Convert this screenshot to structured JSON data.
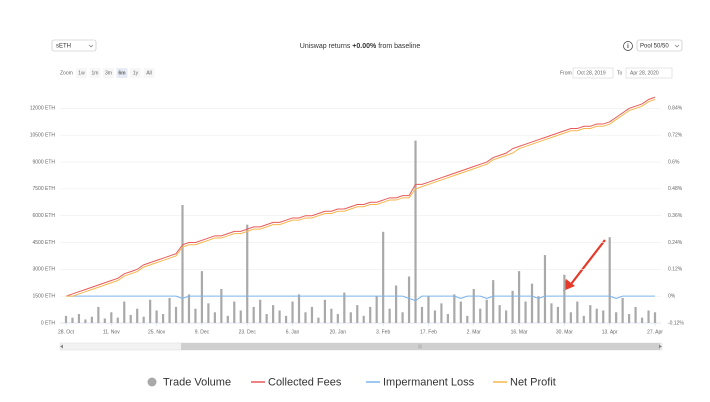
{
  "controls": {
    "asset": "sETH",
    "title_prefix": "Uniswap returns",
    "title_value": "+0.00%",
    "title_suffix": "from baseline",
    "info": "i",
    "pool": "Pool 50/50",
    "zoom_label": "Zoom",
    "zoom_options": [
      "1w",
      "1m",
      "3m",
      "6m",
      "1y",
      "All"
    ],
    "from_label": "From",
    "from_date": "Oct 28, 2019",
    "to_label": "To",
    "to_date": "Apr 28, 2020"
  },
  "chart_data": {
    "type": "combo",
    "categories": [
      "28. Oct",
      null,
      null,
      null,
      null,
      null,
      null,
      "11. Nov",
      null,
      null,
      null,
      null,
      null,
      null,
      "25. Nov",
      null,
      null,
      null,
      null,
      null,
      null,
      "9. Dec",
      null,
      null,
      null,
      null,
      null,
      null,
      "23. Dec",
      null,
      null,
      null,
      null,
      null,
      null,
      "6. Jan",
      null,
      null,
      null,
      null,
      null,
      null,
      "20. Jan",
      null,
      null,
      null,
      null,
      null,
      null,
      "3. Feb",
      null,
      null,
      null,
      null,
      null,
      null,
      "17. Feb",
      null,
      null,
      null,
      null,
      null,
      null,
      "2. Mar",
      null,
      null,
      null,
      null,
      null,
      null,
      "16. Mar",
      null,
      null,
      null,
      null,
      null,
      null,
      "30. Mar",
      null,
      null,
      null,
      null,
      null,
      null,
      "13. Apr",
      null,
      null,
      null,
      null,
      null,
      null,
      "27. Apr"
    ],
    "series": [
      {
        "name": "Trade Volume",
        "type": "bar",
        "color": "#a9a9a9",
        "values": [
          400,
          300,
          500,
          200,
          350,
          900,
          250,
          600,
          300,
          1200,
          450,
          800,
          350,
          1300,
          700,
          500,
          1400,
          900,
          6600,
          1600,
          800,
          2900,
          1100,
          600,
          1900,
          400,
          1200,
          700,
          5500,
          900,
          1300,
          500,
          1000,
          700,
          400,
          1200,
          1600,
          600,
          900,
          300,
          1300,
          800,
          500,
          1700,
          600,
          1000,
          400,
          900,
          1500,
          5100,
          800,
          2100,
          600,
          2600,
          10200,
          900,
          1500,
          700,
          1100,
          500,
          1600,
          1200,
          400,
          1900,
          800,
          1300,
          2400,
          1000,
          700,
          1800,
          2900,
          1200,
          2200,
          1500,
          3800,
          1100,
          900,
          2700,
          600,
          1200,
          400,
          1000,
          800,
          700,
          4800,
          600,
          1400,
          500,
          900,
          300,
          700,
          600
        ]
      },
      {
        "name": "Collected Fees",
        "type": "line",
        "axis": "y2",
        "color": "#e8595a",
        "values": [
          0.0,
          0.01,
          0.02,
          0.03,
          0.04,
          0.05,
          0.06,
          0.07,
          0.08,
          0.1,
          0.11,
          0.12,
          0.14,
          0.15,
          0.16,
          0.17,
          0.18,
          0.19,
          0.23,
          0.24,
          0.24,
          0.25,
          0.26,
          0.27,
          0.27,
          0.28,
          0.29,
          0.29,
          0.3,
          0.31,
          0.31,
          0.32,
          0.33,
          0.33,
          0.34,
          0.35,
          0.35,
          0.36,
          0.36,
          0.37,
          0.38,
          0.38,
          0.39,
          0.39,
          0.4,
          0.41,
          0.41,
          0.42,
          0.42,
          0.43,
          0.44,
          0.44,
          0.45,
          0.45,
          0.5,
          0.5,
          0.51,
          0.52,
          0.53,
          0.54,
          0.55,
          0.56,
          0.57,
          0.58,
          0.59,
          0.6,
          0.62,
          0.63,
          0.64,
          0.66,
          0.67,
          0.68,
          0.69,
          0.7,
          0.71,
          0.72,
          0.73,
          0.74,
          0.75,
          0.75,
          0.76,
          0.76,
          0.77,
          0.77,
          0.78,
          0.8,
          0.82,
          0.84,
          0.85,
          0.86,
          0.88,
          0.89
        ]
      },
      {
        "name": "Impermanent Loss",
        "type": "line",
        "axis": "y2",
        "color": "#7cb5ec",
        "values": [
          0,
          0,
          0,
          0,
          0,
          0,
          0,
          0,
          0,
          0,
          0,
          0,
          0,
          0,
          0,
          0,
          0,
          0,
          -0.01,
          0,
          0,
          0,
          0,
          0,
          0,
          0,
          0,
          0,
          0,
          0,
          0,
          0,
          0,
          0,
          0,
          0,
          0,
          0,
          0,
          0,
          0,
          0,
          0,
          0,
          0,
          0,
          0,
          0,
          0,
          0,
          0,
          0,
          0,
          -0.01,
          -0.02,
          0,
          0,
          0,
          0,
          0,
          0,
          -0.01,
          0,
          0,
          0,
          -0.01,
          0,
          0,
          0,
          0,
          0,
          0,
          0,
          -0.01,
          0,
          0,
          0,
          0,
          0,
          0,
          0,
          0,
          0,
          0,
          0,
          -0.01,
          0,
          0,
          0,
          0,
          0,
          0
        ]
      },
      {
        "name": "Net Profit",
        "type": "line",
        "axis": "y2",
        "color": "#f7b64c",
        "values": [
          0.0,
          0.0,
          0.01,
          0.02,
          0.03,
          0.04,
          0.05,
          0.06,
          0.07,
          0.09,
          0.1,
          0.11,
          0.13,
          0.14,
          0.15,
          0.16,
          0.17,
          0.18,
          0.22,
          0.23,
          0.23,
          0.24,
          0.25,
          0.26,
          0.26,
          0.27,
          0.28,
          0.28,
          0.29,
          0.3,
          0.3,
          0.31,
          0.32,
          0.32,
          0.33,
          0.34,
          0.34,
          0.35,
          0.35,
          0.36,
          0.37,
          0.37,
          0.38,
          0.38,
          0.39,
          0.4,
          0.4,
          0.41,
          0.41,
          0.42,
          0.43,
          0.43,
          0.44,
          0.44,
          0.48,
          0.49,
          0.5,
          0.51,
          0.52,
          0.53,
          0.54,
          0.55,
          0.56,
          0.57,
          0.58,
          0.59,
          0.61,
          0.62,
          0.63,
          0.64,
          0.66,
          0.67,
          0.68,
          0.69,
          0.7,
          0.71,
          0.72,
          0.73,
          0.74,
          0.74,
          0.75,
          0.75,
          0.76,
          0.76,
          0.77,
          0.79,
          0.81,
          0.83,
          0.84,
          0.85,
          0.87,
          0.88
        ]
      }
    ],
    "ylim": [
      0,
      12750
    ],
    "yticks": [
      {
        "value": 0,
        "label": "0 ETH"
      },
      {
        "value": 1500,
        "label": "1500 ETH"
      },
      {
        "value": 3000,
        "label": "3000 ETH"
      },
      {
        "value": 4500,
        "label": "4500 ETH"
      },
      {
        "value": 6000,
        "label": "6000 ETH"
      },
      {
        "value": 7500,
        "label": "7500 ETH"
      },
      {
        "value": 9000,
        "label": "9000 ETH"
      },
      {
        "value": 10500,
        "label": "10500 ETH"
      },
      {
        "value": 12000,
        "label": "12000 ETH"
      }
    ],
    "y2lim": [
      -0.12,
      0.9
    ],
    "y2ticks": [
      {
        "value": -0.12,
        "label": "-0.12%"
      },
      {
        "value": 0,
        "label": "0%"
      },
      {
        "value": 0.12,
        "label": "0.12%"
      },
      {
        "value": 0.24,
        "label": "0.24%"
      },
      {
        "value": 0.36,
        "label": "0.36%"
      },
      {
        "value": 0.48,
        "label": "0.48%"
      },
      {
        "value": 0.6,
        "label": "0.6%"
      },
      {
        "value": 0.72,
        "label": "0.72%"
      },
      {
        "value": 0.84,
        "label": "0.84%"
      }
    ],
    "grid": true
  }
}
